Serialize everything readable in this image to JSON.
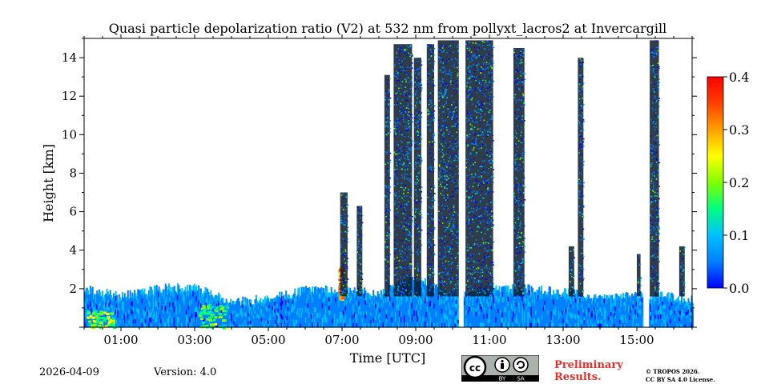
{
  "chart_data": {
    "type": "heatmap",
    "title": "Quasi particle depolarization ratio (V2) at 532 nm from pollyxt_lacros2 at Invercargill",
    "xlabel": "Time [UTC]",
    "ylabel": "Height [km]",
    "xlim": [
      0.0,
      16.5
    ],
    "ylim": [
      0.0,
      15.0
    ],
    "x_ticks": [
      {
        "value": 1,
        "label": "01:00"
      },
      {
        "value": 3,
        "label": "03:00"
      },
      {
        "value": 5,
        "label": "05:00"
      },
      {
        "value": 7,
        "label": "07:00"
      },
      {
        "value": 9,
        "label": "09:00"
      },
      {
        "value": 11,
        "label": "11:00"
      },
      {
        "value": 13,
        "label": "13:00"
      },
      {
        "value": 15,
        "label": "15:00"
      }
    ],
    "y_ticks": [
      {
        "value": 2,
        "label": "2"
      },
      {
        "value": 4,
        "label": "4"
      },
      {
        "value": 6,
        "label": "6"
      },
      {
        "value": 8,
        "label": "8"
      },
      {
        "value": 10,
        "label": "10"
      },
      {
        "value": 12,
        "label": "12"
      },
      {
        "value": 14,
        "label": "14"
      }
    ],
    "colorbar": {
      "min": 0.0,
      "max": 0.4,
      "ticks": [
        {
          "value": 0.0,
          "label": "0.0"
        },
        {
          "value": 0.1,
          "label": "0.1"
        },
        {
          "value": 0.2,
          "label": "0.2"
        },
        {
          "value": 0.3,
          "label": "0.3"
        },
        {
          "value": 0.4,
          "label": "0.4"
        }
      ],
      "colormap": [
        "#0000ff",
        "#0080ff",
        "#00c0ff",
        "#00ff80",
        "#80ff00",
        "#ffff00",
        "#ffa000",
        "#ff4000",
        "#ff0000"
      ]
    },
    "boundary_layer": [
      {
        "t": 0.0,
        "top": 2.0,
        "value": 0.06
      },
      {
        "t": 0.5,
        "top": 1.8,
        "value": 0.06
      },
      {
        "t": 1.0,
        "top": 1.6,
        "value": 0.07
      },
      {
        "t": 2.0,
        "top": 2.0,
        "value": 0.07
      },
      {
        "t": 3.0,
        "top": 2.1,
        "value": 0.07
      },
      {
        "t": 4.0,
        "top": 1.3,
        "value": 0.05
      },
      {
        "t": 5.0,
        "top": 1.5,
        "value": 0.05
      },
      {
        "t": 6.0,
        "top": 1.9,
        "value": 0.05
      },
      {
        "t": 7.0,
        "top": 2.0,
        "value": 0.05
      },
      {
        "t": 8.0,
        "top": 1.8,
        "value": 0.05
      },
      {
        "t": 9.0,
        "top": 2.6,
        "value": 0.04
      },
      {
        "t": 10.0,
        "top": 1.7,
        "value": 0.05
      },
      {
        "t": 11.0,
        "top": 2.0,
        "value": 0.05
      },
      {
        "t": 12.0,
        "top": 2.0,
        "value": 0.05
      },
      {
        "t": 13.0,
        "top": 1.8,
        "value": 0.05
      },
      {
        "t": 14.0,
        "top": 1.6,
        "value": 0.06
      },
      {
        "t": 15.0,
        "top": 1.7,
        "value": 0.06
      },
      {
        "t": 15.8,
        "top": 1.6,
        "value": 0.07
      },
      {
        "t": 16.5,
        "top": 1.4,
        "value": 0.07
      }
    ],
    "high_value_patches": [
      {
        "t0": 0.05,
        "t1": 0.8,
        "h0": 0.0,
        "h1": 0.9,
        "value": 0.2
      },
      {
        "t0": 3.1,
        "t1": 3.9,
        "h0": 0.0,
        "h1": 1.2,
        "value": 0.17
      },
      {
        "t0": 6.9,
        "t1": 7.0,
        "h0": 1.5,
        "h1": 3.3,
        "value": 0.3
      }
    ],
    "rain_columns": [
      {
        "t0": 6.95,
        "t1": 7.15,
        "top": 7.0
      },
      {
        "t0": 7.4,
        "t1": 7.55,
        "top": 6.3
      },
      {
        "t0": 8.15,
        "t1": 8.3,
        "top": 13.1
      },
      {
        "t0": 8.4,
        "t1": 8.9,
        "top": 14.7
      },
      {
        "t0": 8.95,
        "t1": 9.15,
        "top": 14.0
      },
      {
        "t0": 9.3,
        "t1": 9.5,
        "top": 14.7
      },
      {
        "t0": 9.6,
        "t1": 10.2,
        "top": 14.9
      },
      {
        "t0": 10.35,
        "t1": 11.1,
        "top": 14.9
      },
      {
        "t0": 11.65,
        "t1": 11.95,
        "top": 14.5
      },
      {
        "t0": 13.15,
        "t1": 13.3,
        "top": 4.2
      },
      {
        "t0": 13.4,
        "t1": 13.55,
        "top": 14.0
      },
      {
        "t0": 15.0,
        "t1": 15.1,
        "top": 3.8
      },
      {
        "t0": 15.35,
        "t1": 15.6,
        "top": 14.9
      },
      {
        "t0": 16.15,
        "t1": 16.3,
        "top": 4.2
      }
    ],
    "gaps": [
      {
        "t0": 10.17,
        "t1": 10.3
      },
      {
        "t0": 15.18,
        "t1": 15.33
      }
    ]
  },
  "footer": {
    "date": "2026-04-09",
    "version": "Version: 4.0",
    "preliminary": [
      "Preliminary",
      "Results."
    ],
    "copyright": [
      "© TROPOS 2026.",
      "CC BY SA 4.0 License."
    ]
  },
  "license_badge": {
    "by": "BY",
    "sa": "SA"
  }
}
